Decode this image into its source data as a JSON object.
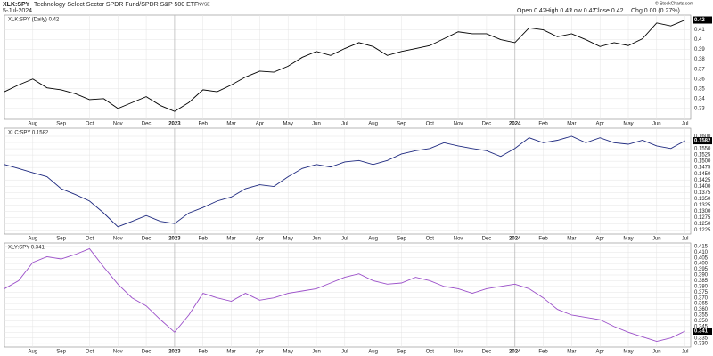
{
  "header": {
    "symbol": "XLK:SPY",
    "description": "Technology Select Sector SPDR Fund/SPDR S&P 500 ETF",
    "exchange": "NYSE",
    "date": "5-Jul-2024",
    "quote": [
      "Open 0.42",
      "High 0.42",
      "Low 0.42",
      "Close 0.42",
      "Chg 0.00 (0.27%)"
    ],
    "credit": "© StockCharts.com"
  },
  "chart_data": [
    {
      "type": "line",
      "x": [
        0,
        0.5,
        1,
        1.5,
        2,
        2.5,
        3,
        3.5,
        4,
        4.5,
        5,
        5.5,
        6,
        6.5,
        7,
        7.5,
        8,
        8.5,
        9,
        9.5,
        10,
        10.5,
        11,
        11.5,
        12,
        12.5,
        13,
        13.5,
        14,
        14.5,
        15,
        15.5,
        16,
        16.5,
        17,
        17.5,
        18,
        18.5,
        19,
        19.5,
        20,
        20.5,
        21,
        21.5,
        22,
        22.5,
        23,
        23.5,
        24
      ],
      "series": [
        {
          "name": "XLK:SPY (Daily) 0.42",
          "color": "#000000",
          "values": [
            0.347,
            0.354,
            0.36,
            0.351,
            0.349,
            0.345,
            0.339,
            0.34,
            0.33,
            0.336,
            0.342,
            0.333,
            0.327,
            0.336,
            0.349,
            0.347,
            0.354,
            0.362,
            0.368,
            0.367,
            0.373,
            0.382,
            0.388,
            0.384,
            0.391,
            0.397,
            0.393,
            0.384,
            0.388,
            0.391,
            0.394,
            0.401,
            0.408,
            0.406,
            0.406,
            0.4,
            0.397,
            0.412,
            0.41,
            0.403,
            0.406,
            0.4,
            0.393,
            0.397,
            0.394,
            0.401,
            0.417,
            0.414,
            0.42
          ]
        }
      ],
      "xlim": [
        0,
        24.2
      ],
      "xticks": [
        {
          "value": 1,
          "label": "Aug"
        },
        {
          "value": 2,
          "label": "Sep"
        },
        {
          "value": 3,
          "label": "Oct"
        },
        {
          "value": 4,
          "label": "Nov"
        },
        {
          "value": 5,
          "label": "Dec"
        },
        {
          "value": 6,
          "label": "2023"
        },
        {
          "value": 7,
          "label": "Feb"
        },
        {
          "value": 8,
          "label": "Mar"
        },
        {
          "value": 9,
          "label": "Apr"
        },
        {
          "value": 10,
          "label": "May"
        },
        {
          "value": 11,
          "label": "Jun"
        },
        {
          "value": 12,
          "label": "Jul"
        },
        {
          "value": 13,
          "label": "Aug"
        },
        {
          "value": 14,
          "label": "Sep"
        },
        {
          "value": 15,
          "label": "Oct"
        },
        {
          "value": 16,
          "label": "Nov"
        },
        {
          "value": 17,
          "label": "Dec"
        },
        {
          "value": 18,
          "label": "2024"
        },
        {
          "value": 19,
          "label": "Feb"
        },
        {
          "value": 20,
          "label": "Mar"
        },
        {
          "value": 21,
          "label": "Apr"
        },
        {
          "value": 22,
          "label": "May"
        },
        {
          "value": 23,
          "label": "Jun"
        },
        {
          "value": 24,
          "label": "Jul"
        }
      ],
      "ylim": [
        0.319,
        0.425
      ],
      "yticks": [
        0.33,
        0.34,
        0.35,
        0.36,
        0.37,
        0.38,
        0.39,
        0.4,
        0.41
      ],
      "grid": true
    },
    {
      "type": "line",
      "x": [
        0,
        0.5,
        1,
        1.5,
        2,
        2.5,
        3,
        3.5,
        4,
        4.5,
        5,
        5.5,
        6,
        6.5,
        7,
        7.5,
        8,
        8.5,
        9,
        9.5,
        10,
        10.5,
        11,
        11.5,
        12,
        12.5,
        13,
        13.5,
        14,
        14.5,
        15,
        15.5,
        16,
        16.5,
        17,
        17.5,
        18,
        18.5,
        19,
        19.5,
        20,
        20.5,
        21,
        21.5,
        22,
        22.5,
        23,
        23.5,
        24
      ],
      "series": [
        {
          "name": "XLC:SPY 0.1582",
          "color": "#1f2a80",
          "values": [
            0.1487,
            0.1471,
            0.1454,
            0.1438,
            0.139,
            0.1367,
            0.1341,
            0.1293,
            0.1238,
            0.126,
            0.1283,
            0.126,
            0.1251,
            0.1293,
            0.1315,
            0.1341,
            0.1357,
            0.139,
            0.1406,
            0.1399,
            0.1438,
            0.1471,
            0.1487,
            0.1477,
            0.1497,
            0.1503,
            0.1487,
            0.1503,
            0.1529,
            0.1542,
            0.1551,
            0.1574,
            0.1561,
            0.1551,
            0.1542,
            0.1519,
            0.1551,
            0.1594,
            0.1574,
            0.1584,
            0.16,
            0.1574,
            0.1594,
            0.1574,
            0.1568,
            0.1584,
            0.1561,
            0.1551,
            0.1582
          ]
        }
      ],
      "xlim": [
        0,
        24.2
      ],
      "xticks": [
        {
          "value": 1,
          "label": "Aug"
        },
        {
          "value": 2,
          "label": "Sep"
        },
        {
          "value": 3,
          "label": "Oct"
        },
        {
          "value": 4,
          "label": "Nov"
        },
        {
          "value": 5,
          "label": "Dec"
        },
        {
          "value": 6,
          "label": "2023"
        },
        {
          "value": 7,
          "label": "Feb"
        },
        {
          "value": 8,
          "label": "Mar"
        },
        {
          "value": 9,
          "label": "Apr"
        },
        {
          "value": 10,
          "label": "May"
        },
        {
          "value": 11,
          "label": "Jun"
        },
        {
          "value": 12,
          "label": "Jul"
        },
        {
          "value": 13,
          "label": "Aug"
        },
        {
          "value": 14,
          "label": "Sep"
        },
        {
          "value": 15,
          "label": "Oct"
        },
        {
          "value": 16,
          "label": "Nov"
        },
        {
          "value": 17,
          "label": "Dec"
        },
        {
          "value": 18,
          "label": "2024"
        },
        {
          "value": 19,
          "label": "Feb"
        },
        {
          "value": 20,
          "label": "Mar"
        },
        {
          "value": 21,
          "label": "Apr"
        },
        {
          "value": 22,
          "label": "May"
        },
        {
          "value": 23,
          "label": "Jun"
        },
        {
          "value": 24,
          "label": "Jul"
        }
      ],
      "ylim": [
        0.1209,
        0.1632
      ],
      "yticks": [
        0.1225,
        {
          "value": 0.125,
          "label": "0.1250"
        },
        0.1275,
        {
          "value": 0.13,
          "label": "0.1300"
        },
        0.1325,
        {
          "value": 0.135,
          "label": "0.1350"
        },
        0.1375,
        {
          "value": 0.14,
          "label": "0.1400"
        },
        0.1425,
        {
          "value": 0.145,
          "label": "0.1450"
        },
        0.1475,
        {
          "value": 0.15,
          "label": "0.1500"
        },
        0.1525,
        {
          "value": 0.155,
          "label": "0.1550"
        },
        0.1575,
        {
          "value": 0.16,
          "label": "0.1600"
        }
      ],
      "grid": true
    },
    {
      "type": "line",
      "x": [
        0,
        0.5,
        1,
        1.5,
        2,
        2.5,
        3,
        3.5,
        4,
        4.5,
        5,
        5.5,
        6,
        6.5,
        7,
        7.5,
        8,
        8.5,
        9,
        9.5,
        10,
        10.5,
        11,
        11.5,
        12,
        12.5,
        13,
        13.5,
        14,
        14.5,
        15,
        15.5,
        16,
        16.5,
        17,
        17.5,
        18,
        18.5,
        19,
        19.5,
        20,
        20.5,
        21,
        21.5,
        22,
        22.5,
        23,
        23.5,
        24
      ],
      "series": [
        {
          "name": "XLY:SPY 0.341",
          "color": "#9b4fc9",
          "values": [
            0.378,
            0.385,
            0.401,
            0.406,
            0.404,
            0.408,
            0.413,
            0.397,
            0.382,
            0.37,
            0.363,
            0.351,
            0.34,
            0.355,
            0.374,
            0.37,
            0.367,
            0.374,
            0.368,
            0.37,
            0.374,
            0.376,
            0.378,
            0.383,
            0.388,
            0.391,
            0.385,
            0.382,
            0.383,
            0.388,
            0.385,
            0.38,
            0.378,
            0.374,
            0.378,
            0.38,
            0.382,
            0.378,
            0.37,
            0.36,
            0.355,
            0.353,
            0.351,
            0.345,
            0.34,
            0.336,
            0.332,
            0.335,
            0.341
          ]
        }
      ],
      "xlim": [
        0,
        24.2
      ],
      "xticks": [
        {
          "value": 1,
          "label": "Aug"
        },
        {
          "value": 2,
          "label": "Sep"
        },
        {
          "value": 3,
          "label": "Oct"
        },
        {
          "value": 4,
          "label": "Nov"
        },
        {
          "value": 5,
          "label": "Dec"
        },
        {
          "value": 6,
          "label": "2023"
        },
        {
          "value": 7,
          "label": "Feb"
        },
        {
          "value": 8,
          "label": "Mar"
        },
        {
          "value": 9,
          "label": "Apr"
        },
        {
          "value": 10,
          "label": "May"
        },
        {
          "value": 11,
          "label": "Jun"
        },
        {
          "value": 12,
          "label": "Jul"
        },
        {
          "value": 13,
          "label": "Aug"
        },
        {
          "value": 14,
          "label": "Sep"
        },
        {
          "value": 15,
          "label": "Oct"
        },
        {
          "value": 16,
          "label": "Nov"
        },
        {
          "value": 17,
          "label": "Dec"
        },
        {
          "value": 18,
          "label": "2024"
        },
        {
          "value": 19,
          "label": "Feb"
        },
        {
          "value": 20,
          "label": "Mar"
        },
        {
          "value": 21,
          "label": "Apr"
        },
        {
          "value": 22,
          "label": "May"
        },
        {
          "value": 23,
          "label": "Jun"
        },
        {
          "value": 24,
          "label": "Jul"
        }
      ],
      "ylim": [
        0.327,
        0.418
      ],
      "yticks": [
        {
          "value": 0.33,
          "label": "0.330"
        },
        0.335,
        {
          "value": 0.34,
          "label": "0.340"
        },
        0.345,
        {
          "value": 0.35,
          "label": "0.350"
        },
        0.355,
        {
          "value": 0.36,
          "label": "0.360"
        },
        0.365,
        {
          "value": 0.37,
          "label": "0.370"
        },
        0.375,
        {
          "value": 0.38,
          "label": "0.380"
        },
        0.385,
        {
          "value": 0.39,
          "label": "0.390"
        },
        0.395,
        {
          "value": 0.4,
          "label": "0.400"
        },
        0.405,
        {
          "value": 0.41,
          "label": "0.410"
        },
        0.415
      ],
      "grid": true
    }
  ]
}
